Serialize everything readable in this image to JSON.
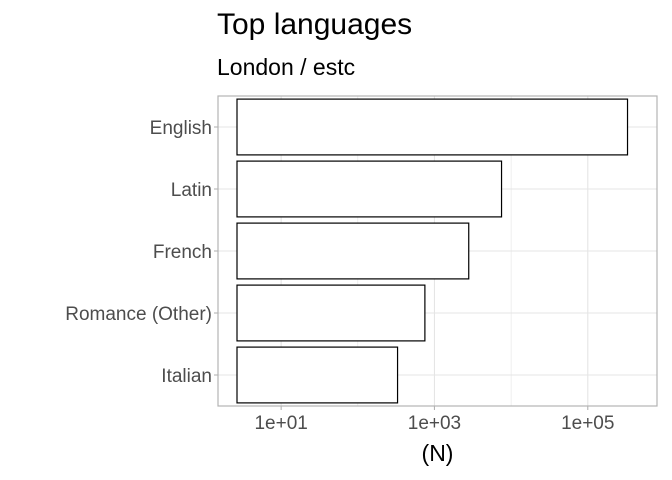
{
  "chart_data": {
    "type": "bar",
    "orientation": "horizontal",
    "title": "Top languages",
    "subtitle": "London / estc",
    "xlabel": "(N)",
    "ylabel": "",
    "x_scale": "log10",
    "xlim": [
      1.5,
      800000
    ],
    "x_ticks": [
      10,
      1000,
      100000
    ],
    "x_tick_labels": [
      "1e+01",
      "1e+03",
      "1e+05"
    ],
    "grid": true,
    "categories": [
      "English",
      "Latin",
      "French",
      "Romance (Other)",
      "Italian"
    ],
    "values": [
      330000,
      7500,
      2800,
      750,
      330
    ],
    "bar_fill": "#ffffff",
    "bar_stroke": "#000000",
    "grid_color": "#e5e5e5",
    "panel_border_color": "#b3b3b3",
    "tick_label_color": "#4d4d4d"
  }
}
